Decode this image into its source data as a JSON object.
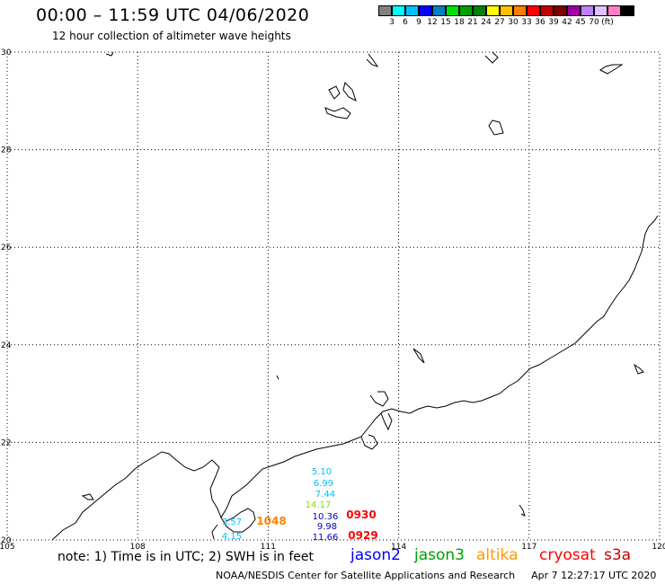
{
  "title": "00:00 – 11:59 UTC 04/06/2020",
  "subtitle": "12 hour collection of altimeter wave heights",
  "scale": {
    "colors": [
      "#808080",
      "#00ffff",
      "#00c0ff",
      "#0000ff",
      "#0080c0",
      "#00e000",
      "#00a000",
      "#008000",
      "#ffff00",
      "#ffc000",
      "#ff8000",
      "#ff0000",
      "#c00000",
      "#800000",
      "#a000a0",
      "#c080ff",
      "#e0c0ff",
      "#ff80c0",
      "#000000"
    ],
    "labels": [
      "3",
      "6",
      "9",
      "12",
      "15",
      "18",
      "21",
      "24",
      "27",
      "30",
      "33",
      "36",
      "39",
      "42",
      "45",
      "70",
      "(ft)"
    ]
  },
  "map": {
    "lat_ticks": [
      "30",
      "28",
      "26",
      "24",
      "22",
      "20"
    ],
    "lon_ticks": [
      "105",
      "108",
      "111",
      "114",
      "117",
      "120"
    ],
    "swh_labels": [
      {
        "text": "5.10",
        "color": "#00c0ff"
      },
      {
        "text": "6.99",
        "color": "#00c0ff"
      },
      {
        "text": "7.44",
        "color": "#00c0ff"
      },
      {
        "text": "14.17",
        "color": "#80e000"
      },
      {
        "text": "10.36",
        "color": "#0000c0"
      },
      {
        "text": "9.98",
        "color": "#0000c0"
      },
      {
        "text": "11.66",
        "color": "#0000c0"
      },
      {
        "text": "3.57",
        "color": "#00c0ff"
      },
      {
        "text": "4.15",
        "color": "#00c0ff"
      },
      {
        "text": "1048",
        "color": "#ff8000"
      },
      {
        "text": "0930",
        "color": "#ff0000"
      },
      {
        "text": "0929",
        "color": "#ff0000"
      }
    ]
  },
  "note": "note: 1) Time is in UTC; 2) SWH is in feet",
  "legend": [
    {
      "text": "jason2",
      "color": "#0000ff"
    },
    {
      "text": "jason3",
      "color": "#00a000"
    },
    {
      "text": "altika",
      "color": "#ff9900"
    },
    {
      "text": "cryosat",
      "color": "#ff0000"
    },
    {
      "text": "s3a",
      "color": "#cc0000"
    }
  ],
  "credit": "NOAA/NESDIS Center for Satellite Applications and Research",
  "timestamp": "Apr  7 12:27:17 UTC 2020"
}
